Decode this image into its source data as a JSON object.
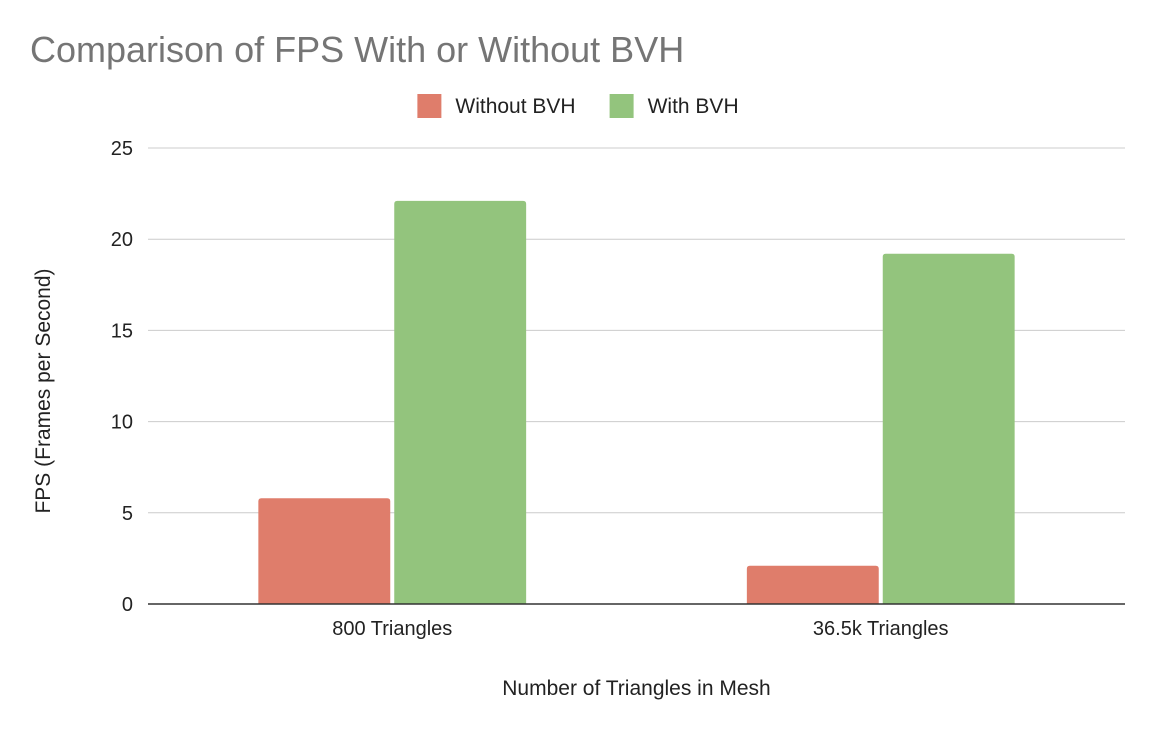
{
  "chart_data": {
    "type": "bar",
    "title": "Comparison of FPS With or Without BVH",
    "xlabel": "Number of Triangles in Mesh",
    "ylabel": "FPS (Frames per Second)",
    "categories": [
      "800 Triangles",
      "36.5k Triangles"
    ],
    "series": [
      {
        "name": "Without BVH",
        "values": [
          5.8,
          2.1
        ],
        "color": "#df7d6b"
      },
      {
        "name": "With BVH",
        "values": [
          22.1,
          19.2
        ],
        "color": "#93c47d"
      }
    ],
    "ylim": [
      0,
      25
    ],
    "yticks": [
      0,
      5,
      10,
      15,
      20,
      25
    ],
    "grid": true,
    "legend_position": "top"
  }
}
